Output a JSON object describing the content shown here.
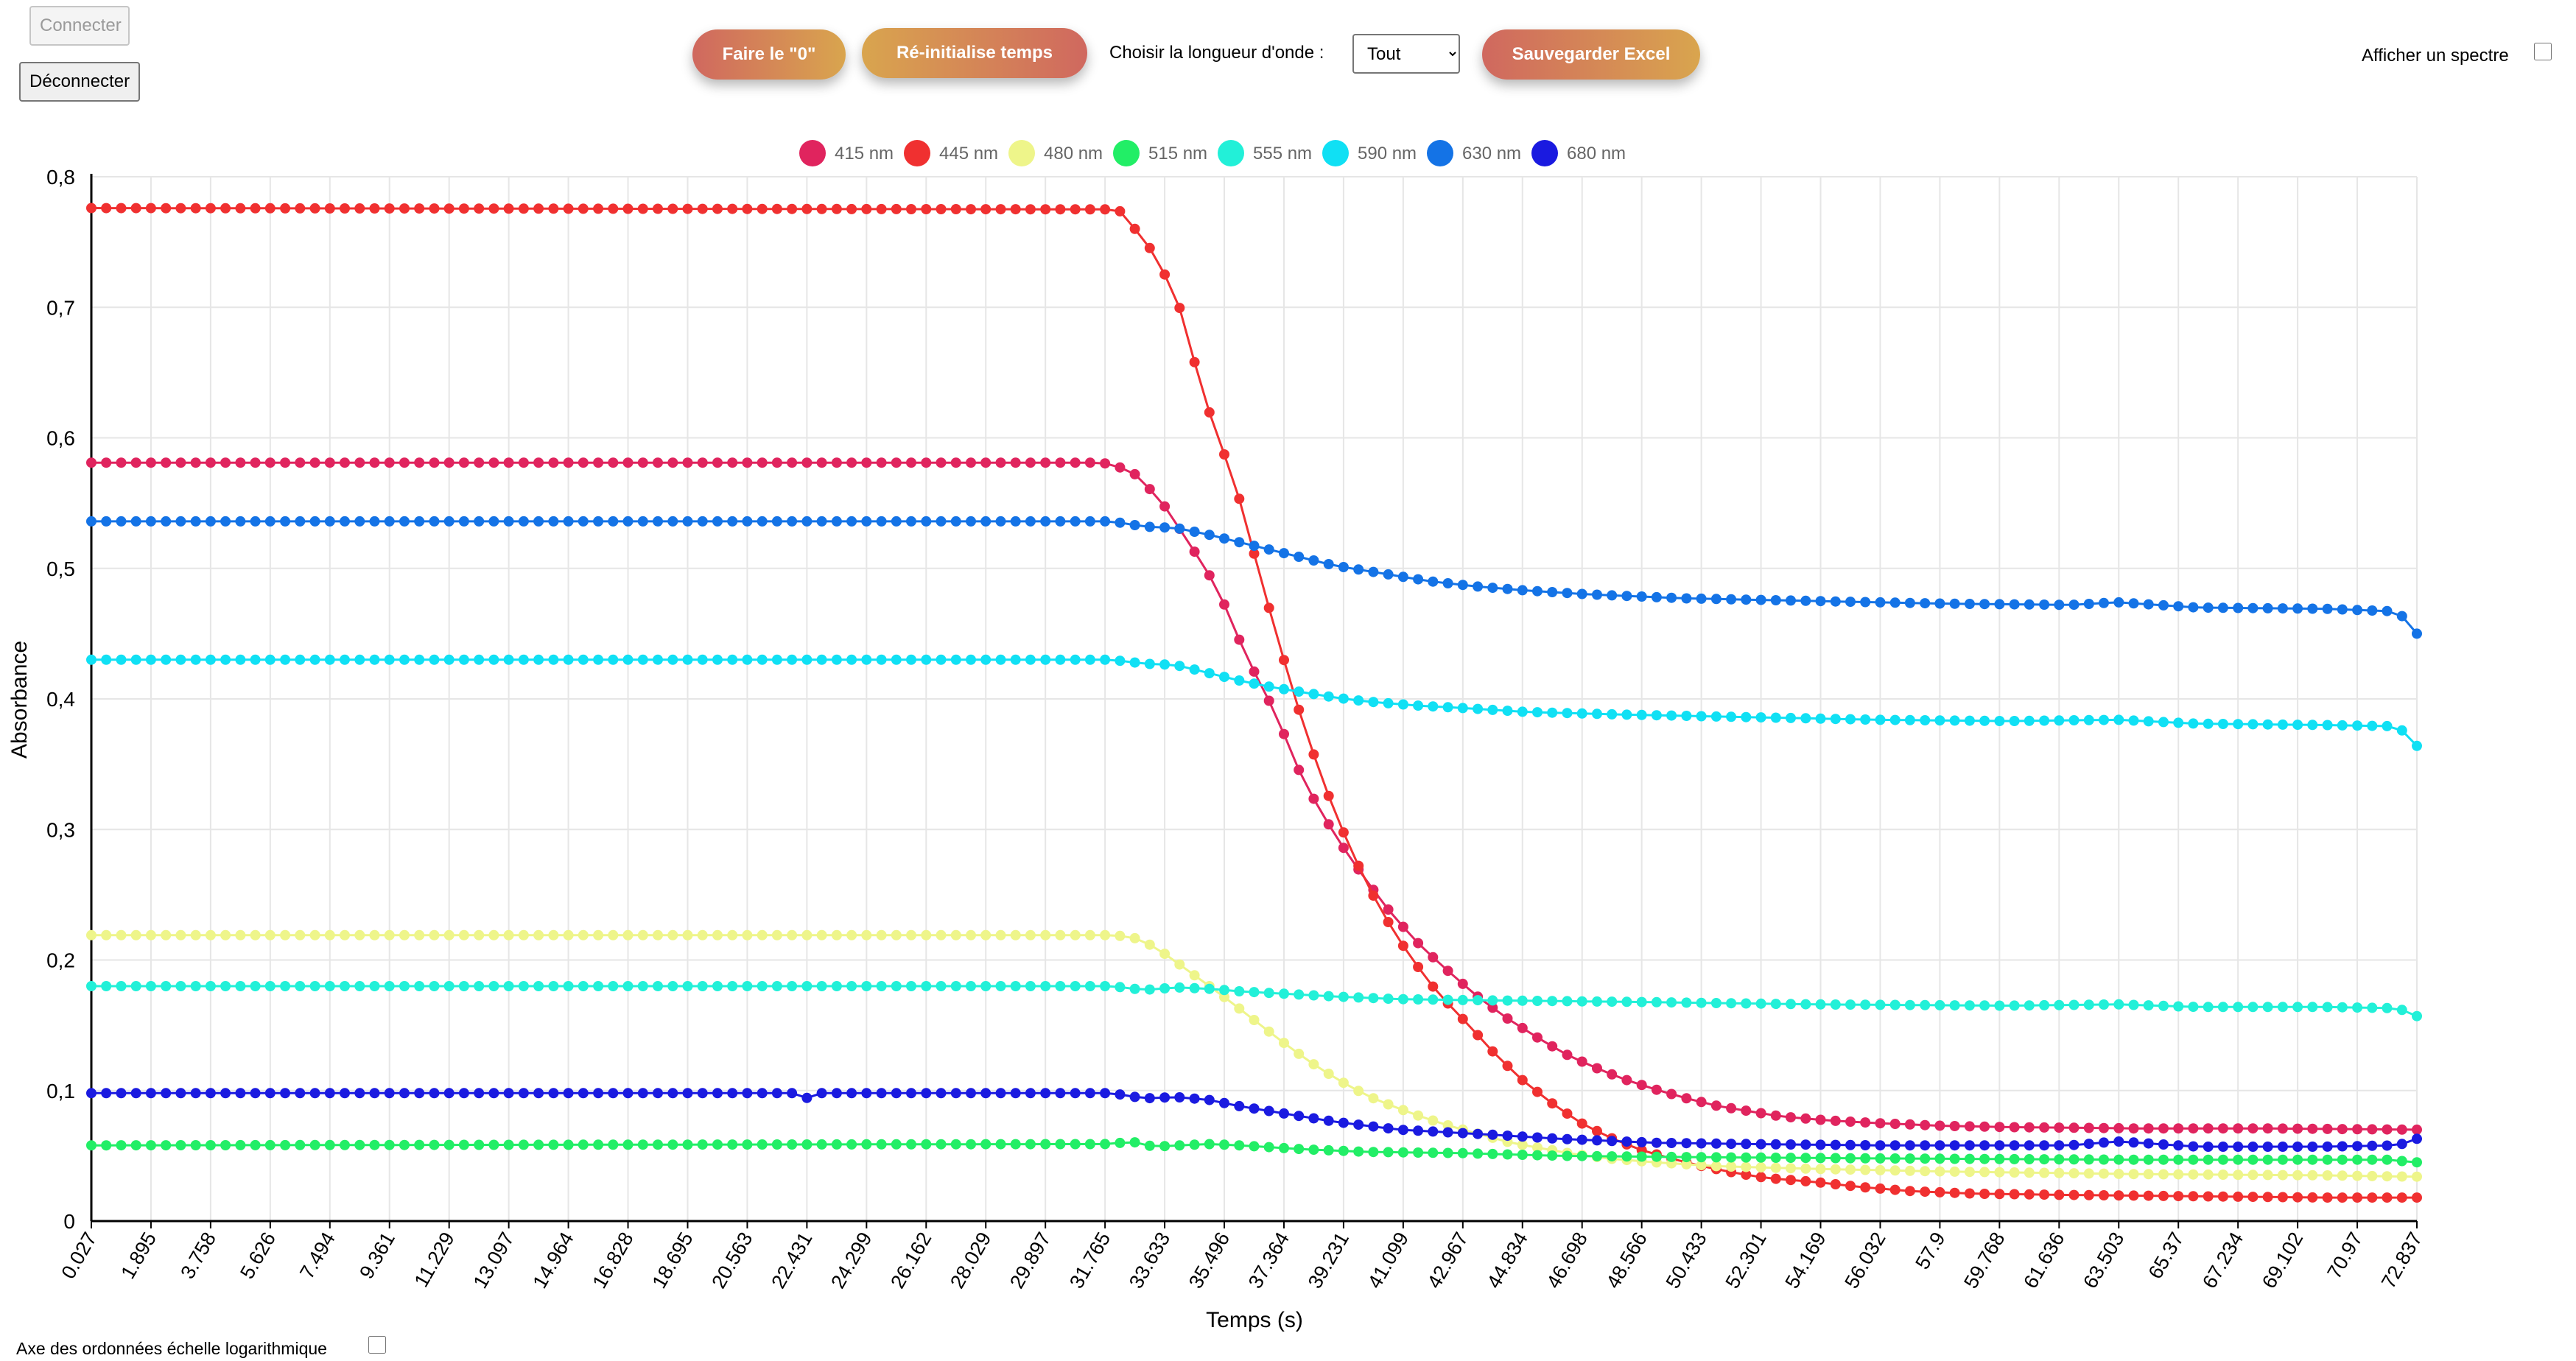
{
  "controls": {
    "connect_label": "Connecter",
    "disconnect_label": "Déconnecter",
    "zero_label": "Faire le \"0\"",
    "reset_label": "Ré-initialise temps",
    "wavelength_label": "Choisir la longueur d'onde :",
    "wavelength_selected": "Tout",
    "save_label": "Sauvegarder Excel",
    "spectrum_label": "Afficher un spectre",
    "log_axis_label": "Axe des ordonnées échelle logarithmique"
  },
  "chart_data": {
    "type": "line",
    "title": "",
    "xlabel": "Temps (s)",
    "ylabel": "Absorbance",
    "ylim": [
      0,
      0.8
    ],
    "yticks": [
      "0",
      "0,1",
      "0,2",
      "0,3",
      "0,4",
      "0,5",
      "0,6",
      "0,7",
      "0,8"
    ],
    "grid": true,
    "legend_position": "top-center",
    "x_start": 0.027,
    "x_step": 0.467,
    "x_count": 157,
    "x_tick_every": 4,
    "x_tick_labels": [
      "0.027",
      "1.895",
      "3.758",
      "5.626",
      "7.494",
      "9.361",
      "11.229",
      "13.097",
      "14.964",
      "16.828",
      "18.695",
      "20.563",
      "22.431",
      "24.299",
      "26.162",
      "28.029",
      "29.897",
      "31.765",
      "33.633",
      "35.496",
      "37.364",
      "39.231",
      "41.099",
      "42.967",
      "44.834",
      "46.698",
      "48.566",
      "50.433",
      "52.301",
      "54.169",
      "56.032",
      "57.9",
      "59.768",
      "61.636",
      "63.503",
      "65.37",
      "67.234",
      "69.102",
      "70.97",
      "72.837"
    ],
    "series": [
      {
        "name": "415 nm",
        "color": "#e0245e",
        "points": [
          [
            0.027,
            0.581
          ],
          [
            31.7,
            0.581
          ],
          [
            32.6,
            0.575
          ],
          [
            33.5,
            0.553
          ],
          [
            34.4,
            0.52
          ],
          [
            35.3,
            0.485
          ],
          [
            36.2,
            0.433
          ],
          [
            37.1,
            0.39
          ],
          [
            38.0,
            0.337
          ],
          [
            39.0,
            0.295
          ],
          [
            39.9,
            0.263
          ],
          [
            40.8,
            0.234
          ],
          [
            41.7,
            0.21
          ],
          [
            42.6,
            0.19
          ],
          [
            43.5,
            0.171
          ],
          [
            44.4,
            0.155
          ],
          [
            45.3,
            0.141
          ],
          [
            46.2,
            0.128
          ],
          [
            47.1,
            0.118
          ],
          [
            48.0,
            0.109
          ],
          [
            49.0,
            0.101
          ],
          [
            50.0,
            0.094
          ],
          [
            51.0,
            0.088
          ],
          [
            52.0,
            0.084
          ],
          [
            53.0,
            0.08
          ],
          [
            54.5,
            0.077
          ],
          [
            56.0,
            0.075
          ],
          [
            58.0,
            0.073
          ],
          [
            60.0,
            0.072
          ],
          [
            64.0,
            0.071
          ],
          [
            68.0,
            0.071
          ],
          [
            72.83,
            0.07
          ]
        ]
      },
      {
        "name": "445 nm",
        "color": "#f03030",
        "points": [
          [
            0.027,
            0.776
          ],
          [
            32.2,
            0.775
          ],
          [
            33.1,
            0.749
          ],
          [
            34.0,
            0.71
          ],
          [
            34.9,
            0.63
          ],
          [
            35.9,
            0.561
          ],
          [
            36.8,
            0.48
          ],
          [
            37.7,
            0.403
          ],
          [
            38.6,
            0.337
          ],
          [
            39.5,
            0.283
          ],
          [
            40.4,
            0.239
          ],
          [
            41.3,
            0.204
          ],
          [
            42.2,
            0.175
          ],
          [
            43.1,
            0.152
          ],
          [
            44.0,
            0.128
          ],
          [
            44.9,
            0.107
          ],
          [
            45.8,
            0.09
          ],
          [
            46.7,
            0.075
          ],
          [
            47.6,
            0.064
          ],
          [
            48.5,
            0.055
          ],
          [
            49.5,
            0.048
          ],
          [
            50.5,
            0.042
          ],
          [
            51.5,
            0.037
          ],
          [
            52.5,
            0.033
          ],
          [
            54.0,
            0.03
          ],
          [
            55.5,
            0.026
          ],
          [
            57.0,
            0.023
          ],
          [
            59.0,
            0.021
          ],
          [
            62.0,
            0.02
          ],
          [
            66.0,
            0.019
          ],
          [
            70.0,
            0.018
          ],
          [
            72.83,
            0.018
          ]
        ]
      },
      {
        "name": "480 nm",
        "color": "#eef58a",
        "points": [
          [
            0.027,
            0.219
          ],
          [
            32.1,
            0.219
          ],
          [
            32.9,
            0.216
          ],
          [
            33.7,
            0.204
          ],
          [
            34.6,
            0.188
          ],
          [
            35.5,
            0.172
          ],
          [
            36.4,
            0.155
          ],
          [
            37.3,
            0.138
          ],
          [
            38.2,
            0.122
          ],
          [
            39.1,
            0.108
          ],
          [
            40.0,
            0.096
          ],
          [
            40.9,
            0.087
          ],
          [
            41.8,
            0.079
          ],
          [
            42.7,
            0.072
          ],
          [
            43.6,
            0.066
          ],
          [
            44.5,
            0.06
          ],
          [
            45.4,
            0.056
          ],
          [
            46.3,
            0.052
          ],
          [
            47.5,
            0.048
          ],
          [
            49.0,
            0.045
          ],
          [
            51.0,
            0.042
          ],
          [
            54.0,
            0.04
          ],
          [
            58.0,
            0.038
          ],
          [
            64.0,
            0.036
          ],
          [
            70.0,
            0.035
          ],
          [
            72.83,
            0.034
          ]
        ]
      },
      {
        "name": "515 nm",
        "color": "#22ee66",
        "points": [
          [
            0.027,
            0.058
          ],
          [
            32.0,
            0.059
          ],
          [
            32.6,
            0.061
          ],
          [
            33.3,
            0.057
          ],
          [
            35.0,
            0.059
          ],
          [
            36.0,
            0.058
          ],
          [
            38.0,
            0.055
          ],
          [
            40.0,
            0.053
          ],
          [
            43.0,
            0.052
          ],
          [
            46.0,
            0.05
          ],
          [
            50.0,
            0.049
          ],
          [
            56.0,
            0.048
          ],
          [
            64.0,
            0.047
          ],
          [
            72.0,
            0.047
          ],
          [
            72.83,
            0.045
          ]
        ]
      },
      {
        "name": "555 nm",
        "color": "#22f0d8",
        "points": [
          [
            0.027,
            0.18
          ],
          [
            32.0,
            0.18
          ],
          [
            33.0,
            0.177
          ],
          [
            34.0,
            0.179
          ],
          [
            35.0,
            0.178
          ],
          [
            36.0,
            0.176
          ],
          [
            37.5,
            0.174
          ],
          [
            39.0,
            0.172
          ],
          [
            41.0,
            0.17
          ],
          [
            44.0,
            0.169
          ],
          [
            48.0,
            0.168
          ],
          [
            54.0,
            0.166
          ],
          [
            60.0,
            0.165
          ],
          [
            63.5,
            0.166
          ],
          [
            66.0,
            0.164
          ],
          [
            70.0,
            0.164
          ],
          [
            72.3,
            0.163
          ],
          [
            72.83,
            0.157
          ]
        ]
      },
      {
        "name": "590 nm",
        "color": "#10e0f4",
        "points": [
          [
            0.027,
            0.43
          ],
          [
            32.0,
            0.43
          ],
          [
            33.0,
            0.427
          ],
          [
            34.0,
            0.426
          ],
          [
            35.0,
            0.42
          ],
          [
            36.0,
            0.414
          ],
          [
            37.0,
            0.409
          ],
          [
            38.0,
            0.405
          ],
          [
            39.0,
            0.401
          ],
          [
            40.0,
            0.398
          ],
          [
            41.5,
            0.395
          ],
          [
            43.0,
            0.393
          ],
          [
            45.0,
            0.39
          ],
          [
            48.0,
            0.388
          ],
          [
            52.0,
            0.386
          ],
          [
            56.0,
            0.384
          ],
          [
            60.0,
            0.383
          ],
          [
            63.5,
            0.384
          ],
          [
            66.0,
            0.381
          ],
          [
            70.0,
            0.38
          ],
          [
            72.3,
            0.379
          ],
          [
            72.83,
            0.364
          ]
        ]
      },
      {
        "name": "630 nm",
        "color": "#1473e6",
        "points": [
          [
            0.027,
            0.536
          ],
          [
            32.0,
            0.536
          ],
          [
            33.0,
            0.532
          ],
          [
            34.0,
            0.531
          ],
          [
            35.0,
            0.526
          ],
          [
            36.0,
            0.52
          ],
          [
            37.0,
            0.514
          ],
          [
            38.0,
            0.508
          ],
          [
            39.0,
            0.502
          ],
          [
            40.0,
            0.498
          ],
          [
            41.0,
            0.494
          ],
          [
            42.0,
            0.49
          ],
          [
            43.5,
            0.486
          ],
          [
            45.0,
            0.483
          ],
          [
            47.0,
            0.48
          ],
          [
            50.0,
            0.477
          ],
          [
            54.0,
            0.475
          ],
          [
            58.0,
            0.473
          ],
          [
            62.0,
            0.472
          ],
          [
            63.5,
            0.474
          ],
          [
            66.0,
            0.47
          ],
          [
            70.0,
            0.469
          ],
          [
            72.3,
            0.467
          ],
          [
            72.83,
            0.45
          ]
        ]
      },
      {
        "name": "680 nm",
        "color": "#1a1ae0",
        "points": [
          [
            0.027,
            0.098
          ],
          [
            22.0,
            0.098
          ],
          [
            22.4,
            0.094
          ],
          [
            22.9,
            0.098
          ],
          [
            32.0,
            0.098
          ],
          [
            33.0,
            0.094
          ],
          [
            34.0,
            0.095
          ],
          [
            35.0,
            0.093
          ],
          [
            36.0,
            0.088
          ],
          [
            37.0,
            0.084
          ],
          [
            38.0,
            0.08
          ],
          [
            39.0,
            0.076
          ],
          [
            40.0,
            0.073
          ],
          [
            41.0,
            0.07
          ],
          [
            42.5,
            0.068
          ],
          [
            44.0,
            0.066
          ],
          [
            46.0,
            0.063
          ],
          [
            49.0,
            0.06
          ],
          [
            52.0,
            0.059
          ],
          [
            56.0,
            0.058
          ],
          [
            62.0,
            0.058
          ],
          [
            63.5,
            0.061
          ],
          [
            66.0,
            0.057
          ],
          [
            70.0,
            0.057
          ],
          [
            72.3,
            0.058
          ],
          [
            72.83,
            0.063
          ]
        ]
      }
    ]
  }
}
